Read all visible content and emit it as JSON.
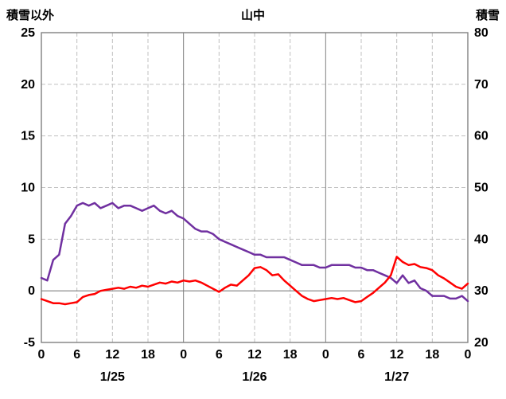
{
  "header": {
    "title": "山中",
    "left_axis_title": "積雪以外",
    "right_axis_title": "積雪"
  },
  "chart_data": {
    "type": "line",
    "title": "山中",
    "legend": "none",
    "grid": "on",
    "left_axis": {
      "label": "積雪以外",
      "min": -5,
      "max": 25,
      "ticks": [
        25,
        20,
        15,
        10,
        5,
        0,
        -5
      ],
      "dashed_gridlines": [
        20,
        15,
        10,
        5
      ],
      "zero_line": 0
    },
    "right_axis": {
      "label": "積雪",
      "min": 20,
      "max": 80,
      "ticks": [
        80,
        70,
        60,
        50,
        40,
        30,
        20
      ]
    },
    "x_axis": {
      "unit": "hour",
      "min": 0,
      "max": 72,
      "tick_hours": [
        0,
        6,
        12,
        18,
        24,
        30,
        36,
        42,
        48,
        54,
        60,
        66,
        72
      ],
      "tick_labels": [
        "0",
        "6",
        "12",
        "18",
        "0",
        "6",
        "12",
        "18",
        "0",
        "6",
        "12",
        "18",
        "0"
      ],
      "dashed_gridline_hours": [
        6,
        12,
        18,
        30,
        36,
        42,
        54,
        60,
        66
      ],
      "solid_gridline_hours": [
        24,
        48
      ],
      "day_labels": [
        {
          "label": "1/25",
          "hour": 12
        },
        {
          "label": "1/26",
          "hour": 36
        },
        {
          "label": "1/27",
          "hour": 60
        }
      ]
    },
    "series": [
      {
        "name": "積雪",
        "axis": "right",
        "color": "#7030A0",
        "values": [
          32.5,
          32.0,
          36.0,
          37.0,
          43.0,
          44.5,
          46.5,
          47.0,
          46.5,
          47.0,
          46.0,
          46.5,
          47.0,
          46.0,
          46.5,
          46.5,
          46.0,
          45.5,
          46.0,
          46.5,
          45.5,
          45.0,
          45.5,
          44.5,
          44.0,
          43.0,
          42.0,
          41.5,
          41.5,
          41.0,
          40.0,
          39.5,
          39.0,
          38.5,
          38.0,
          37.5,
          37.0,
          37.0,
          36.5,
          36.5,
          36.5,
          36.5,
          36.0,
          35.5,
          35.0,
          35.0,
          35.0,
          34.5,
          34.5,
          35.0,
          35.0,
          35.0,
          35.0,
          34.5,
          34.5,
          34.0,
          34.0,
          33.5,
          33.0,
          32.5,
          31.5,
          33.0,
          31.5,
          32.0,
          30.5,
          30.0,
          29.0,
          29.0,
          29.0,
          28.5,
          28.5,
          29.0,
          28.0
        ]
      },
      {
        "name": "積雪以外",
        "axis": "left",
        "color": "#FF0000",
        "values": [
          -0.8,
          -1.0,
          -1.2,
          -1.2,
          -1.3,
          -1.2,
          -1.1,
          -0.6,
          -0.4,
          -0.3,
          0.0,
          0.1,
          0.2,
          0.3,
          0.2,
          0.4,
          0.3,
          0.5,
          0.4,
          0.6,
          0.8,
          0.7,
          0.9,
          0.8,
          1.0,
          0.9,
          1.0,
          0.8,
          0.5,
          0.2,
          -0.1,
          0.3,
          0.6,
          0.5,
          1.0,
          1.5,
          2.2,
          2.3,
          2.0,
          1.5,
          1.6,
          1.0,
          0.5,
          0.0,
          -0.5,
          -0.8,
          -1.0,
          -0.9,
          -0.8,
          -0.7,
          -0.8,
          -0.7,
          -0.9,
          -1.1,
          -1.0,
          -0.6,
          -0.2,
          0.3,
          0.8,
          1.5,
          3.3,
          2.8,
          2.5,
          2.6,
          2.3,
          2.2,
          2.0,
          1.5,
          1.2,
          0.8,
          0.4,
          0.2,
          0.7
        ]
      }
    ],
    "colors": {
      "plot_border": "#808080",
      "dashed_grid": "#c0c0c0",
      "solid_grid": "#808080",
      "zero_line": "#808080",
      "tick_text": "#000000"
    }
  }
}
